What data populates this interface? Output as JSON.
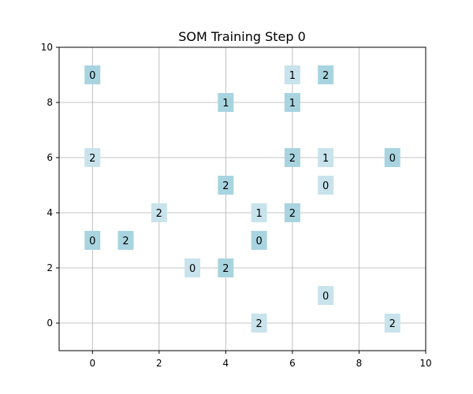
{
  "chart_data": {
    "type": "scatter",
    "title": "SOM Training Step 0",
    "xlabel": "",
    "ylabel": "",
    "xlim": [
      -1,
      10
    ],
    "ylim": [
      -1,
      10
    ],
    "xticks": [
      "0",
      "2",
      "4",
      "6",
      "8",
      "10"
    ],
    "xtick_values": [
      0,
      2,
      4,
      6,
      8,
      10
    ],
    "yticks": [
      "0",
      "2",
      "4",
      "6",
      "8",
      "10"
    ],
    "ytick_values": [
      0,
      2,
      4,
      6,
      8,
      10
    ],
    "grid": true,
    "colors": {
      "dark_box": "#a8d4e0",
      "light_box": "#c8e3ec"
    },
    "points": [
      {
        "x": 0,
        "y": 9,
        "label": "0",
        "shade": "dark"
      },
      {
        "x": 6,
        "y": 9,
        "label": "1",
        "shade": "light"
      },
      {
        "x": 7,
        "y": 9,
        "label": "2",
        "shade": "dark"
      },
      {
        "x": 4,
        "y": 8,
        "label": "1",
        "shade": "dark"
      },
      {
        "x": 6,
        "y": 8,
        "label": "1",
        "shade": "dark"
      },
      {
        "x": 0,
        "y": 6,
        "label": "2",
        "shade": "light"
      },
      {
        "x": 6,
        "y": 6,
        "label": "2",
        "shade": "dark"
      },
      {
        "x": 7,
        "y": 6,
        "label": "1",
        "shade": "light"
      },
      {
        "x": 9,
        "y": 6,
        "label": "0",
        "shade": "dark"
      },
      {
        "x": 4,
        "y": 5,
        "label": "2",
        "shade": "dark"
      },
      {
        "x": 7,
        "y": 5,
        "label": "0",
        "shade": "light"
      },
      {
        "x": 2,
        "y": 4,
        "label": "2",
        "shade": "light"
      },
      {
        "x": 5,
        "y": 4,
        "label": "1",
        "shade": "light"
      },
      {
        "x": 6,
        "y": 4,
        "label": "2",
        "shade": "dark"
      },
      {
        "x": 0,
        "y": 3,
        "label": "0",
        "shade": "dark"
      },
      {
        "x": 1,
        "y": 3,
        "label": "2",
        "shade": "dark"
      },
      {
        "x": 5,
        "y": 3,
        "label": "0",
        "shade": "dark"
      },
      {
        "x": 3,
        "y": 2,
        "label": "0",
        "shade": "light"
      },
      {
        "x": 4,
        "y": 2,
        "label": "2",
        "shade": "dark"
      },
      {
        "x": 7,
        "y": 1,
        "label": "0",
        "shade": "light"
      },
      {
        "x": 5,
        "y": 0,
        "label": "2",
        "shade": "light"
      },
      {
        "x": 9,
        "y": 0,
        "label": "2",
        "shade": "light"
      }
    ]
  }
}
